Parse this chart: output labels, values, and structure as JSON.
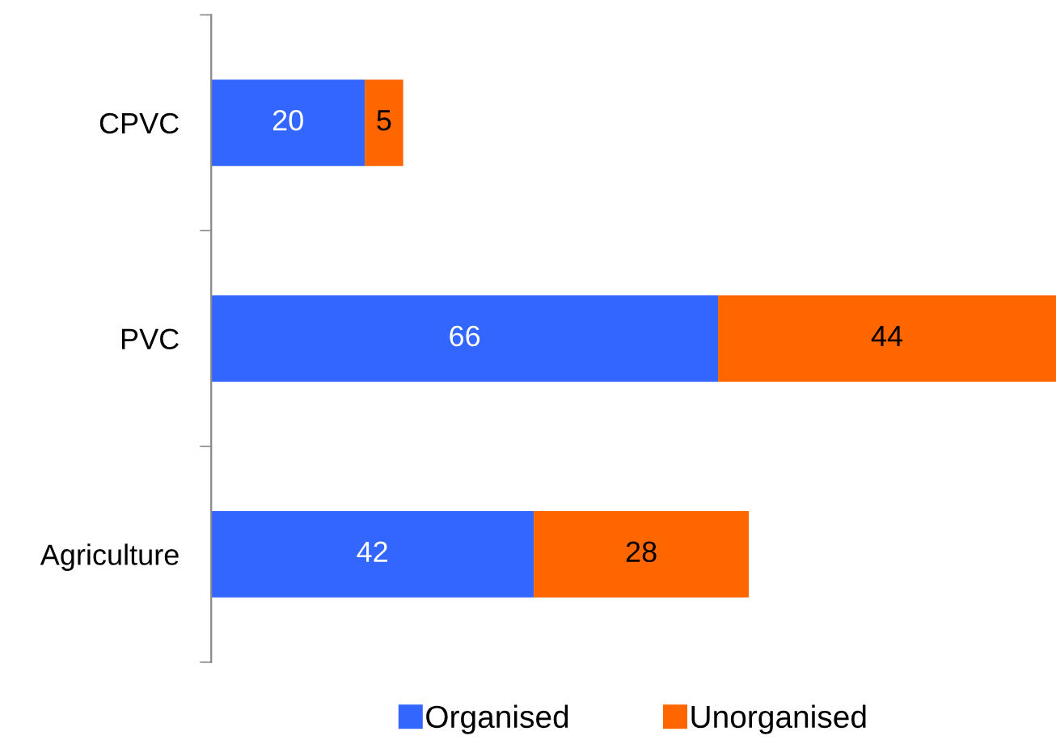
{
  "chart_data": {
    "type": "bar",
    "orientation": "horizontal",
    "stacked": true,
    "categories": [
      "CPVC",
      "PVC",
      "Agriculture"
    ],
    "series": [
      {
        "name": "Organised",
        "color": "#3366ff",
        "values": [
          20,
          66,
          42
        ]
      },
      {
        "name": "Unorganised",
        "color": "#ff6600",
        "values": [
          5,
          44,
          28
        ]
      }
    ],
    "data_labels": true,
    "legend": "bottom",
    "grid": false
  }
}
